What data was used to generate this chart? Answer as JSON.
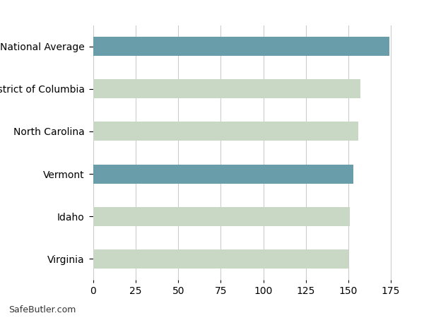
{
  "categories": [
    "Virginia",
    "Idaho",
    "Vermont",
    "North Carolina",
    "District of Columbia",
    "National Average"
  ],
  "values": [
    150,
    151,
    153,
    156,
    157,
    174
  ],
  "bar_colors": [
    "#c8d8c5",
    "#c8d8c5",
    "#6a9daa",
    "#c8d8c5",
    "#c8d8c5",
    "#6a9daa"
  ],
  "highlight_color": "#6a9daa",
  "default_color": "#c8d8c5",
  "background_color": "#ffffff",
  "grid_color": "#cccccc",
  "xlim": [
    0,
    187
  ],
  "xticks": [
    0,
    25,
    50,
    75,
    100,
    125,
    150,
    175
  ],
  "watermark": "SafeButler.com",
  "watermark_fontsize": 9,
  "bar_height": 0.45,
  "label_fontsize": 10,
  "tick_fontsize": 10
}
